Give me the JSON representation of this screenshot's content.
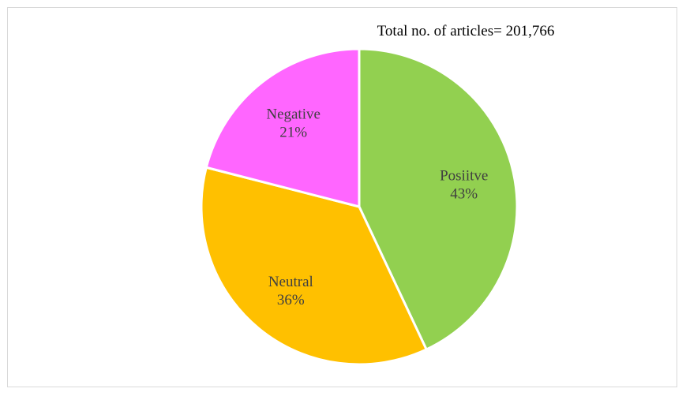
{
  "chart_data": {
    "type": "pie",
    "title": "Total no. of articles= 201,766",
    "slices": [
      {
        "label": "Posiitve",
        "value_label": "43%",
        "value": 43,
        "color": "#92d050"
      },
      {
        "label": "Neutral",
        "value_label": "36%",
        "value": 36,
        "color": "#ffc000"
      },
      {
        "label": "Negative",
        "value_label": "21%",
        "value": 21,
        "color": "#ff66ff"
      }
    ],
    "start_angle_deg": 0,
    "direction": "clockwise",
    "slice_border_color": "#ffffff"
  }
}
